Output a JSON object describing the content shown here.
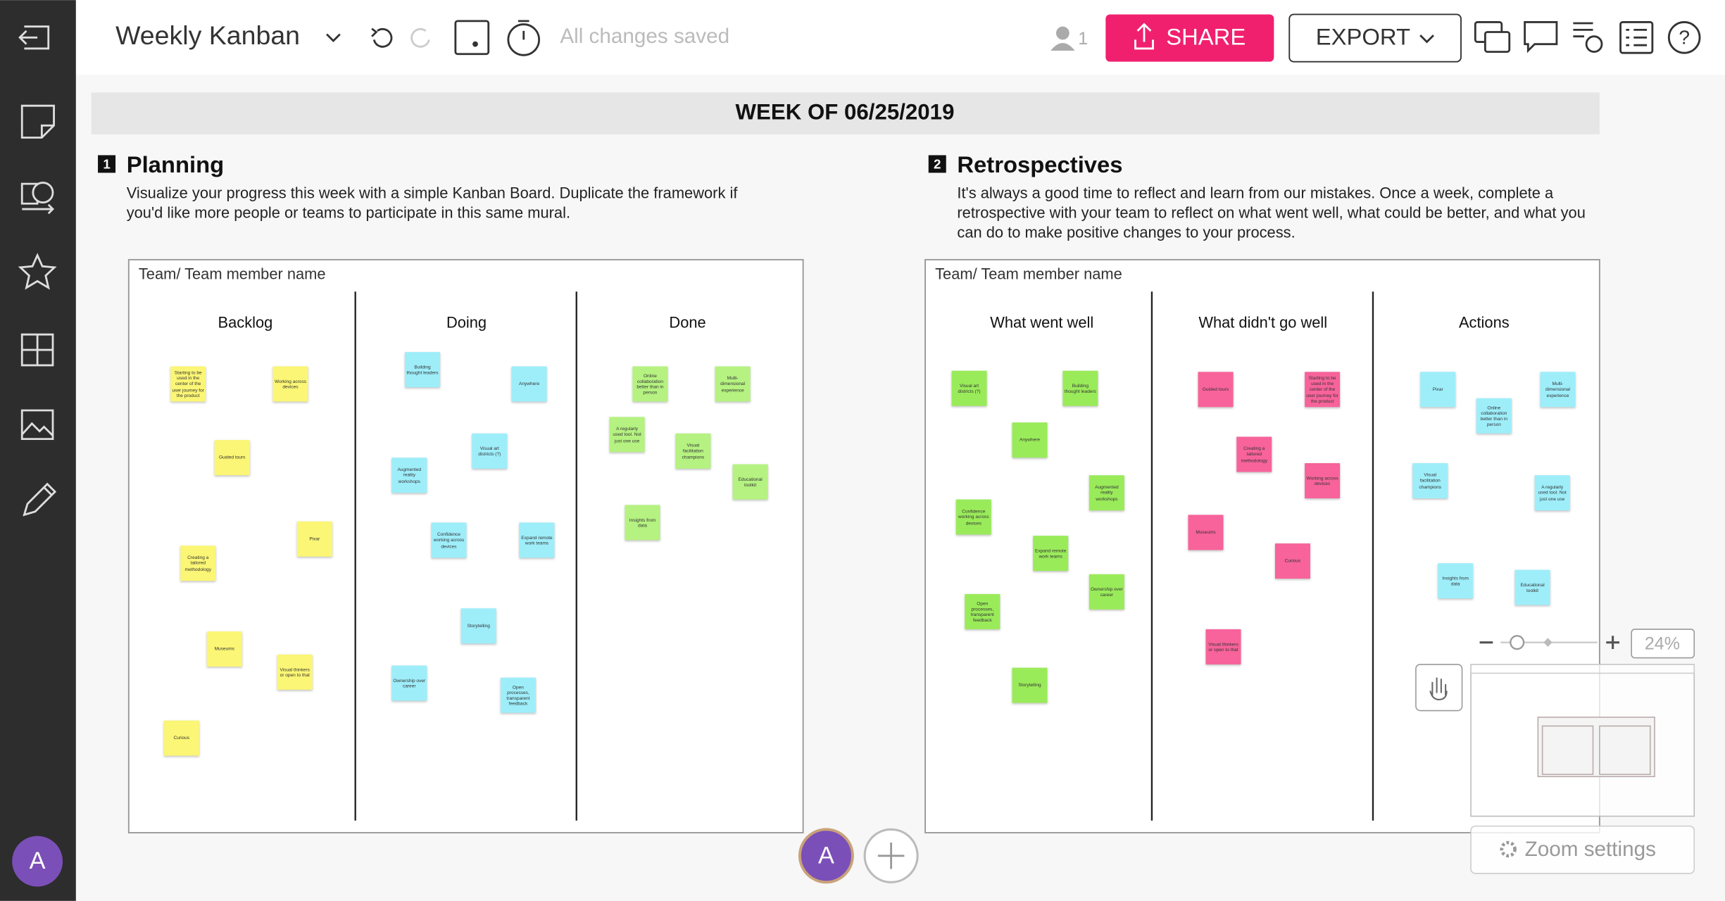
{
  "header": {
    "title": "Weekly Kanban",
    "status": "All changes saved",
    "participants": "1",
    "share": "SHARE",
    "export": "EXPORT"
  },
  "banner": "WEEK OF 06/25/2019",
  "sections": [
    {
      "number": "1",
      "title": "Planning",
      "description": "Visualize your progress this week with a simple Kanban Board. Duplicate the framework if you'd like more people or teams to participate in this same mural.",
      "board": {
        "label": "Team/ Team member name",
        "columns": [
          {
            "title": "Backlog",
            "color": "#fbf675",
            "notes": [
              "Starting to be used in the center of the user journey for the product",
              "Working across devices",
              "Guided tours",
              "Pixar",
              "Creating a tailored methodology",
              "Museums",
              "Visual thinkers or open to that",
              "Curious"
            ]
          },
          {
            "title": "Doing",
            "color": "#9eeefa",
            "notes": [
              "Building thought leaders",
              "Anywhere",
              "Visual art districts (?)",
              "Augmented reality workshops",
              "Confidence working across devices",
              "Expand remote work teams",
              "Storytelling",
              "Ownership over career",
              "Open processes, transparent feedback"
            ]
          },
          {
            "title": "Done",
            "color": "#b5f281",
            "notes": [
              "Online collaboration better than in person",
              "Multi-dimensional experience",
              "A regularly used tool. Not just one use",
              "Visual facilitation champions",
              "Educational toolkit",
              "Insights from data"
            ]
          }
        ]
      }
    },
    {
      "number": "2",
      "title": "Retrospectives",
      "description": "It's always a good time to reflect and learn from our mistakes. Once a week, complete a retrospective with your team to reflect on what went well, what could be better, and what you can do to make positive changes to your process.",
      "board": {
        "label": "Team/ Team member name",
        "columns": [
          {
            "title": "What went well",
            "color": "#9aeb5a",
            "notes": [
              "Visual art districts (?)",
              "Building thought leaders",
              "Anywhere",
              "Augmented reality workshops",
              "Confidence working across devices",
              "Expand remote work teams",
              "Ownership over career",
              "Open processes, transparent feedback",
              "Storytelling"
            ]
          },
          {
            "title": "What didn't go well",
            "color": "#f7639a",
            "notes": [
              "Guided tours",
              "Starting to be used in the center of the user journey for the product",
              "Creating a tailored methodology",
              "Working across devices",
              "Museums",
              "Curious",
              "Visual thinkers or open to that"
            ]
          },
          {
            "title": "Actions",
            "color": "#9eeefa",
            "notes": [
              "Pixar",
              "Multi-dimensional experience",
              "Online collaboration better than in person",
              "Visual facilitation champions",
              "A regularly used tool. Not just one use",
              "Insights from data",
              "Educational toolkit"
            ]
          }
        ]
      }
    }
  ],
  "zoom": {
    "level": "24%",
    "settings": "Zoom settings"
  },
  "user": {
    "initial": "A"
  }
}
